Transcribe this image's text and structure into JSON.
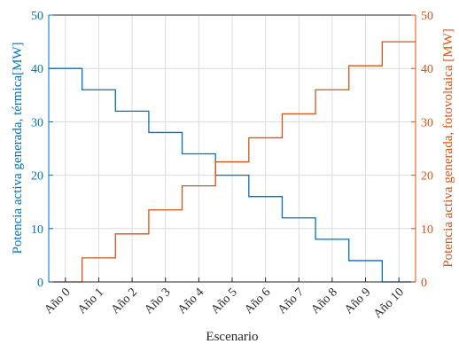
{
  "chart_data": {
    "type": "line",
    "style": "stairs",
    "grid": true,
    "categories": [
      "Año 0",
      "Año 1",
      "Año 2",
      "Año 3",
      "Año 4",
      "Año 5",
      "Año 6",
      "Año 7",
      "Año 8",
      "Año 9",
      "Año 10"
    ],
    "xlabel": "Escenario",
    "ylabel_left": "Potencia activa generada, térmica[MW]",
    "ylabel_right": "Potencia activa generada, fotovoltaica [MW]",
    "ylim_left": [
      0,
      50
    ],
    "ylim_right": [
      0,
      50
    ],
    "yticks": [
      "0",
      "10",
      "20",
      "30",
      "40",
      "50"
    ],
    "series": [
      {
        "axis": "left",
        "color": "#0072BD",
        "values": [
          40,
          36,
          32,
          28,
          24,
          20,
          16,
          12,
          8,
          4,
          0
        ]
      },
      {
        "axis": "right",
        "color": "#D95319",
        "values": [
          0,
          4.5,
          9,
          13.5,
          18,
          22.5,
          27,
          31.5,
          36,
          40.5,
          45
        ]
      }
    ]
  }
}
